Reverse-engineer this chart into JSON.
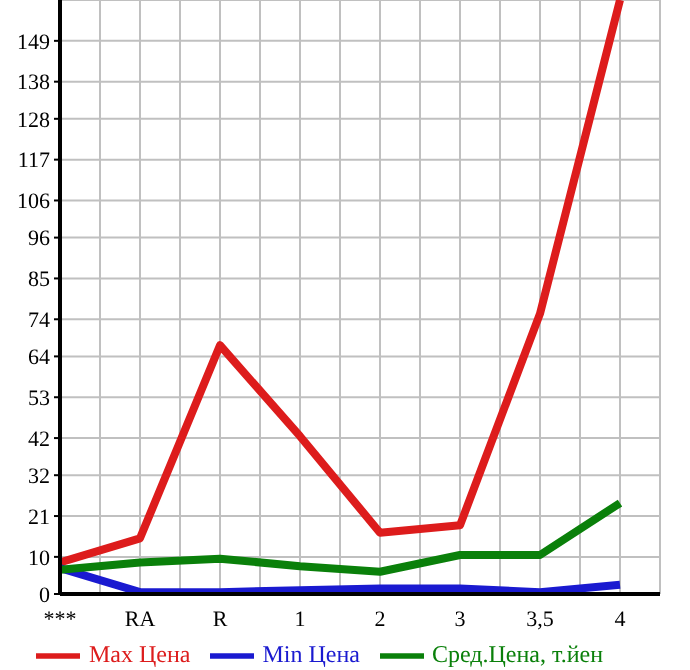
{
  "chart_data": {
    "type": "line",
    "categories": [
      "***",
      "RA",
      "R",
      "1",
      "2",
      "3",
      "3,5",
      "4"
    ],
    "series": [
      {
        "name": "Max Цена",
        "color": "#dd1c1c",
        "values": [
          8.5,
          15,
          67,
          42.5,
          16.5,
          18.5,
          75.5,
          160
        ]
      },
      {
        "name": "Min Цена",
        "color": "#1a1ad0",
        "values": [
          7,
          0.5,
          0.5,
          1,
          1.5,
          1.5,
          0.5,
          2.5
        ]
      },
      {
        "name": "Сред.Цена, т.йен",
        "color": "#0a800a",
        "values": [
          6.5,
          8.5,
          9.5,
          7.5,
          6,
          10.5,
          10.5,
          24.5
        ]
      }
    ],
    "ylim": [
      0,
      160
    ],
    "yticks": [
      0,
      10,
      21,
      32,
      42,
      53,
      64,
      74,
      85,
      96,
      106,
      117,
      128,
      138,
      149
    ],
    "grid": true,
    "legend": "bottom",
    "marker": "none",
    "line_style": "solid"
  }
}
